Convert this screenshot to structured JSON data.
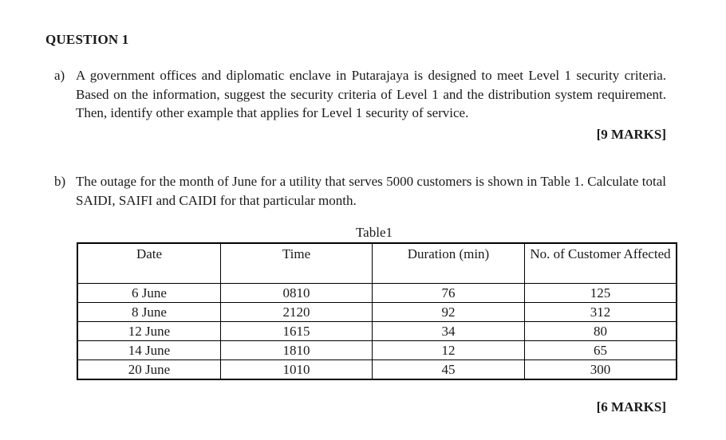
{
  "page": {
    "title": "QUESTION 1"
  },
  "parts": {
    "a": {
      "label": "a)",
      "text": "A government offices and diplomatic enclave in Putarajaya is designed to meet Level 1 security criteria. Based on the information, suggest the security criteria of Level 1 and the distribution system requirement. Then, identify other example that applies for Level 1 security of service.",
      "marks": "[9 MARKS]"
    },
    "b": {
      "label": "b)",
      "text": "The outage for the month of June for a utility that serves 5000 customers is shown in Table 1. Calculate total SAIDI, SAIFI and CAIDI for that particular month.",
      "marks": "[6 MARKS]"
    }
  },
  "table": {
    "caption": "Table1",
    "headers": [
      "Date",
      "Time",
      "Duration (min)",
      "No. of Customer Affected"
    ],
    "rows": [
      [
        "6 June",
        "0810",
        "76",
        "125"
      ],
      [
        "8 June",
        "2120",
        "92",
        "312"
      ],
      [
        "12 June",
        "1615",
        "34",
        "80"
      ],
      [
        "14 June",
        "1810",
        "12",
        "65"
      ],
      [
        "20 June",
        "1010",
        "45",
        "300"
      ]
    ]
  }
}
